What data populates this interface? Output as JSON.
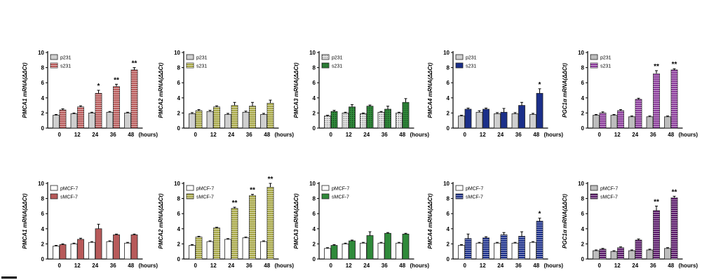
{
  "chart_data": [
    {
      "type": "bar",
      "ylabel": "PMCA1 mRNA(ΔΔCt)",
      "xunit": "(hours)",
      "categories": [
        "0",
        "12",
        "24",
        "36",
        "48"
      ],
      "ylim": [
        0,
        10
      ],
      "yticks": [
        0,
        2,
        4,
        6,
        8,
        10
      ],
      "legend_position": "top-left",
      "series": [
        {
          "name": "p231",
          "values": [
            1.7,
            1.9,
            2.0,
            2.1,
            2.0
          ],
          "errors": [
            0.1,
            0.1,
            0.1,
            0.1,
            0.1
          ],
          "fill": "#cfcfcf",
          "pattern": "none"
        },
        {
          "name": "s231",
          "values": [
            2.4,
            2.8,
            4.6,
            5.5,
            7.7
          ],
          "errors": [
            0.15,
            0.15,
            0.4,
            0.3,
            0.3
          ],
          "fill": "#b85a5a",
          "pattern": "hstripe"
        }
      ],
      "significance": [
        [
          1,
          2,
          "*"
        ],
        [
          1,
          3,
          "**"
        ],
        [
          1,
          4,
          "**"
        ]
      ]
    },
    {
      "type": "bar",
      "ylabel": "PMCA2 mRNA(ΔΔCt)",
      "xunit": "(hours)",
      "categories": [
        "0",
        "12",
        "24",
        "36",
        "48"
      ],
      "ylim": [
        0,
        10
      ],
      "yticks": [
        0,
        2,
        4,
        6,
        8,
        10
      ],
      "legend_position": "top-left",
      "series": [
        {
          "name": "p231",
          "values": [
            1.9,
            2.2,
            1.8,
            2.1,
            1.8
          ],
          "errors": [
            0.15,
            0.15,
            0.15,
            0.15,
            0.15
          ],
          "fill": "#cfcfcf",
          "pattern": "none"
        },
        {
          "name": "s231",
          "values": [
            2.3,
            2.8,
            3.0,
            2.9,
            3.3
          ],
          "errors": [
            0.15,
            0.15,
            0.4,
            0.5,
            0.4
          ],
          "fill": "#a8a848",
          "pattern": "hstripe"
        }
      ],
      "significance": []
    },
    {
      "type": "bar",
      "ylabel": "PMCA3 mRNA(ΔΔCt)",
      "xunit": "(hours)",
      "categories": [
        "0",
        "12",
        "24",
        "36",
        "48"
      ],
      "ylim": [
        0,
        10
      ],
      "yticks": [
        0,
        2,
        4,
        6,
        8,
        10
      ],
      "legend_position": "top-left",
      "series": [
        {
          "name": "p231",
          "values": [
            1.6,
            2.0,
            1.9,
            2.1,
            2.0
          ],
          "errors": [
            0.1,
            0.1,
            0.1,
            0.1,
            0.1
          ],
          "fill": "#e8e8e8",
          "pattern": "dots"
        },
        {
          "name": "s231",
          "values": [
            2.2,
            2.8,
            2.9,
            2.5,
            3.4
          ],
          "errors": [
            0.15,
            0.3,
            0.15,
            0.4,
            0.5
          ],
          "fill": "#2f8a3a",
          "pattern": "dots"
        }
      ],
      "significance": []
    },
    {
      "type": "bar",
      "ylabel": "PMCA4 mRNA(ΔΔCt)",
      "xunit": "(hours)",
      "categories": [
        "0",
        "12",
        "24",
        "36",
        "48"
      ],
      "ylim": [
        0,
        10
      ],
      "yticks": [
        0,
        2,
        4,
        6,
        8,
        10
      ],
      "legend_position": "top-left",
      "series": [
        {
          "name": "p231",
          "values": [
            1.6,
            2.1,
            1.9,
            1.9,
            1.8
          ],
          "errors": [
            0.1,
            0.2,
            0.15,
            0.15,
            0.15
          ],
          "fill": "#cfcfcf",
          "pattern": "none"
        },
        {
          "name": "s231",
          "values": [
            2.5,
            2.5,
            2.1,
            3.0,
            4.6
          ],
          "errors": [
            0.15,
            0.15,
            0.5,
            0.4,
            0.6
          ],
          "fill": "#1b2f8a",
          "pattern": "none"
        }
      ],
      "significance": [
        [
          1,
          4,
          "*"
        ]
      ]
    },
    {
      "type": "bar",
      "ylabel": "PGC1α mRNA(ΔΔCt)",
      "xunit": "(hours)",
      "categories": [
        "0",
        "12",
        "24",
        "36",
        "48"
      ],
      "ylim": [
        0,
        10
      ],
      "yticks": [
        0,
        2,
        4,
        6,
        8,
        10
      ],
      "legend_position": "top-left",
      "series": [
        {
          "name": "p231",
          "values": [
            1.7,
            1.7,
            1.5,
            1.5,
            1.5
          ],
          "errors": [
            0.1,
            0.1,
            0.1,
            0.1,
            0.1
          ],
          "fill": "#bdbdbd",
          "pattern": "none"
        },
        {
          "name": "s231",
          "values": [
            2.0,
            2.3,
            3.8,
            7.2,
            7.7
          ],
          "errors": [
            0.15,
            0.15,
            0.15,
            0.4,
            0.15
          ],
          "fill": "#8a3a9a",
          "pattern": "hstripe"
        }
      ],
      "significance": [
        [
          1,
          3,
          "**"
        ],
        [
          1,
          4,
          "**"
        ]
      ]
    },
    {
      "type": "bar",
      "ylabel": "PMCA1 mRNA(ΔΔCt)",
      "xunit": "(hours)",
      "categories": [
        "0",
        "12",
        "24",
        "36",
        "48"
      ],
      "ylim": [
        0,
        10
      ],
      "yticks": [
        0,
        2,
        4,
        6,
        8,
        10
      ],
      "legend_position": "top-left",
      "series": [
        {
          "name": "pMCF-7",
          "values": [
            1.7,
            2.0,
            2.2,
            2.3,
            2.1
          ],
          "errors": [
            0.1,
            0.1,
            0.1,
            0.1,
            0.1
          ],
          "fill": "#ffffff",
          "pattern": "none"
        },
        {
          "name": "sMCF-7",
          "values": [
            1.9,
            2.6,
            4.0,
            3.2,
            3.2
          ],
          "errors": [
            0.1,
            0.15,
            0.6,
            0.1,
            0.1
          ],
          "fill": "#b85a5a",
          "pattern": "none"
        }
      ],
      "significance": []
    },
    {
      "type": "bar",
      "ylabel": "PMCA2 mRNA(ΔΔCt)",
      "xunit": "(hours)",
      "categories": [
        "0",
        "12",
        "24",
        "36",
        "48"
      ],
      "ylim": [
        0,
        10
      ],
      "yticks": [
        0,
        2,
        4,
        6,
        8,
        10
      ],
      "legend_position": "top-left",
      "series": [
        {
          "name": "pMCF-7",
          "values": [
            1.8,
            2.3,
            2.6,
            2.8,
            2.3
          ],
          "errors": [
            0.1,
            0.1,
            0.1,
            0.1,
            0.1
          ],
          "fill": "#ffffff",
          "pattern": "none"
        },
        {
          "name": "sMCF-7",
          "values": [
            2.9,
            4.1,
            6.7,
            8.4,
            9.5
          ],
          "errors": [
            0.1,
            0.1,
            0.15,
            0.15,
            0.5
          ],
          "fill": "#a8a848",
          "pattern": "hstripe"
        }
      ],
      "significance": [
        [
          1,
          2,
          "**"
        ],
        [
          1,
          3,
          "**"
        ],
        [
          1,
          4,
          "**"
        ]
      ]
    },
    {
      "type": "bar",
      "ylabel": "PMCA3 mRNA(ΔΔCt)",
      "xunit": "(hours)",
      "categories": [
        "0",
        "12",
        "24",
        "36",
        "48"
      ],
      "ylim": [
        0,
        10
      ],
      "yticks": [
        0,
        2,
        4,
        6,
        8,
        10
      ],
      "legend_position": "top-left",
      "series": [
        {
          "name": "pMCF-7",
          "values": [
            1.4,
            2.0,
            2.1,
            2.1,
            2.1
          ],
          "errors": [
            0.1,
            0.1,
            0.1,
            0.1,
            0.1
          ],
          "fill": "#ffffff",
          "pattern": "none"
        },
        {
          "name": "sMCF-7",
          "values": [
            1.8,
            2.4,
            3.1,
            3.4,
            3.3
          ],
          "errors": [
            0.1,
            0.1,
            0.5,
            0.1,
            0.1
          ],
          "fill": "#2f8a3a",
          "pattern": "none"
        }
      ],
      "significance": []
    },
    {
      "type": "bar",
      "ylabel": "PMCA4 mRNA(ΔΔCt)",
      "xunit": "(hours)",
      "categories": [
        "0",
        "12",
        "24",
        "36",
        "48"
      ],
      "ylim": [
        0,
        10
      ],
      "yticks": [
        0,
        2,
        4,
        6,
        8,
        10
      ],
      "legend_position": "top-left",
      "series": [
        {
          "name": "pMCF-7",
          "values": [
            1.8,
            2.1,
            2.1,
            2.1,
            2.2
          ],
          "errors": [
            0.1,
            0.1,
            0.1,
            0.1,
            0.1
          ],
          "fill": "#ffffff",
          "pattern": "none"
        },
        {
          "name": "sMCF-7",
          "values": [
            2.7,
            2.8,
            3.2,
            3.0,
            5.0
          ],
          "errors": [
            0.6,
            0.15,
            0.3,
            0.6,
            0.4
          ],
          "fill": "#1b2f8a",
          "pattern": "hstripe"
        }
      ],
      "significance": [
        [
          1,
          4,
          "*"
        ]
      ]
    },
    {
      "type": "bar",
      "ylabel": "PGC1α mRNA(ΔΔCt)",
      "xunit": "(hours)",
      "categories": [
        "0",
        "12",
        "24",
        "36",
        "48"
      ],
      "ylim": [
        0,
        10
      ],
      "yticks": [
        0,
        2,
        4,
        6,
        8,
        10
      ],
      "legend_position": "top-left",
      "series": [
        {
          "name": "pMCF-7",
          "values": [
            1.1,
            1.0,
            1.1,
            1.2,
            1.4
          ],
          "errors": [
            0.1,
            0.1,
            0.1,
            0.1,
            0.1
          ],
          "fill": "#bdbdbd",
          "pattern": "none"
        },
        {
          "name": "sMCF-7",
          "values": [
            1.3,
            1.5,
            2.5,
            6.4,
            8.1
          ],
          "errors": [
            0.1,
            0.1,
            0.15,
            0.6,
            0.2
          ],
          "fill": "#5a1a6a",
          "pattern": "hstripe"
        }
      ],
      "significance": [
        [
          1,
          3,
          "**"
        ],
        [
          1,
          4,
          "**"
        ]
      ]
    }
  ]
}
